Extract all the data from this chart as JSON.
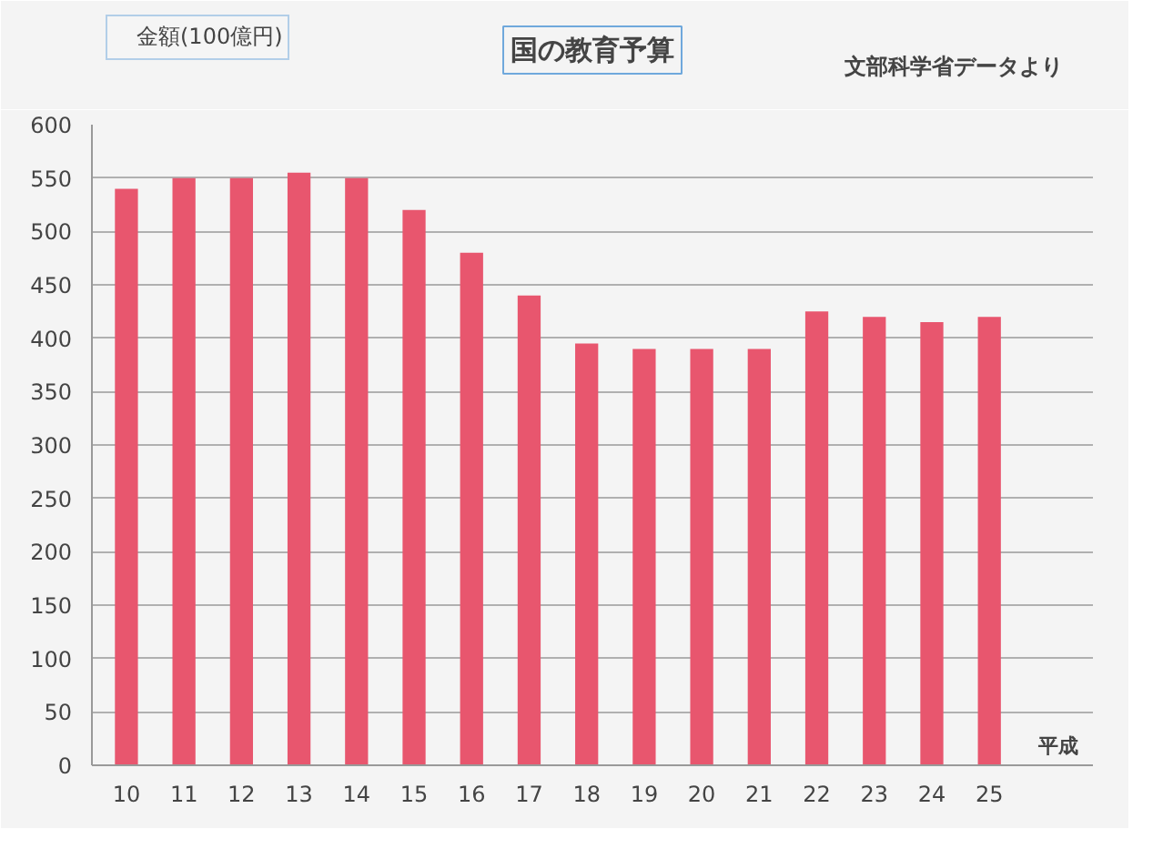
{
  "chart_data": {
    "type": "bar",
    "title": "国の教育予算",
    "xlabel": "平成",
    "annotations": [
      "文部科学省データより"
    ],
    "categories": [
      "10",
      "11",
      "12",
      "13",
      "14",
      "15",
      "16",
      "17",
      "18",
      "19",
      "20",
      "21",
      "22",
      "23",
      "24",
      "25"
    ],
    "series": [
      {
        "name": "金額(100億円)",
        "color": "#e8566e",
        "values": [
          540,
          550,
          550,
          555,
          550,
          520,
          480,
          440,
          395,
          390,
          390,
          390,
          425,
          420,
          415,
          420
        ]
      }
    ],
    "ylim": [
      0,
      600
    ],
    "yticks": [
      0,
      50,
      100,
      150,
      200,
      250,
      300,
      350,
      400,
      450,
      500,
      550,
      600
    ],
    "grid": "y",
    "legend": "top left"
  }
}
